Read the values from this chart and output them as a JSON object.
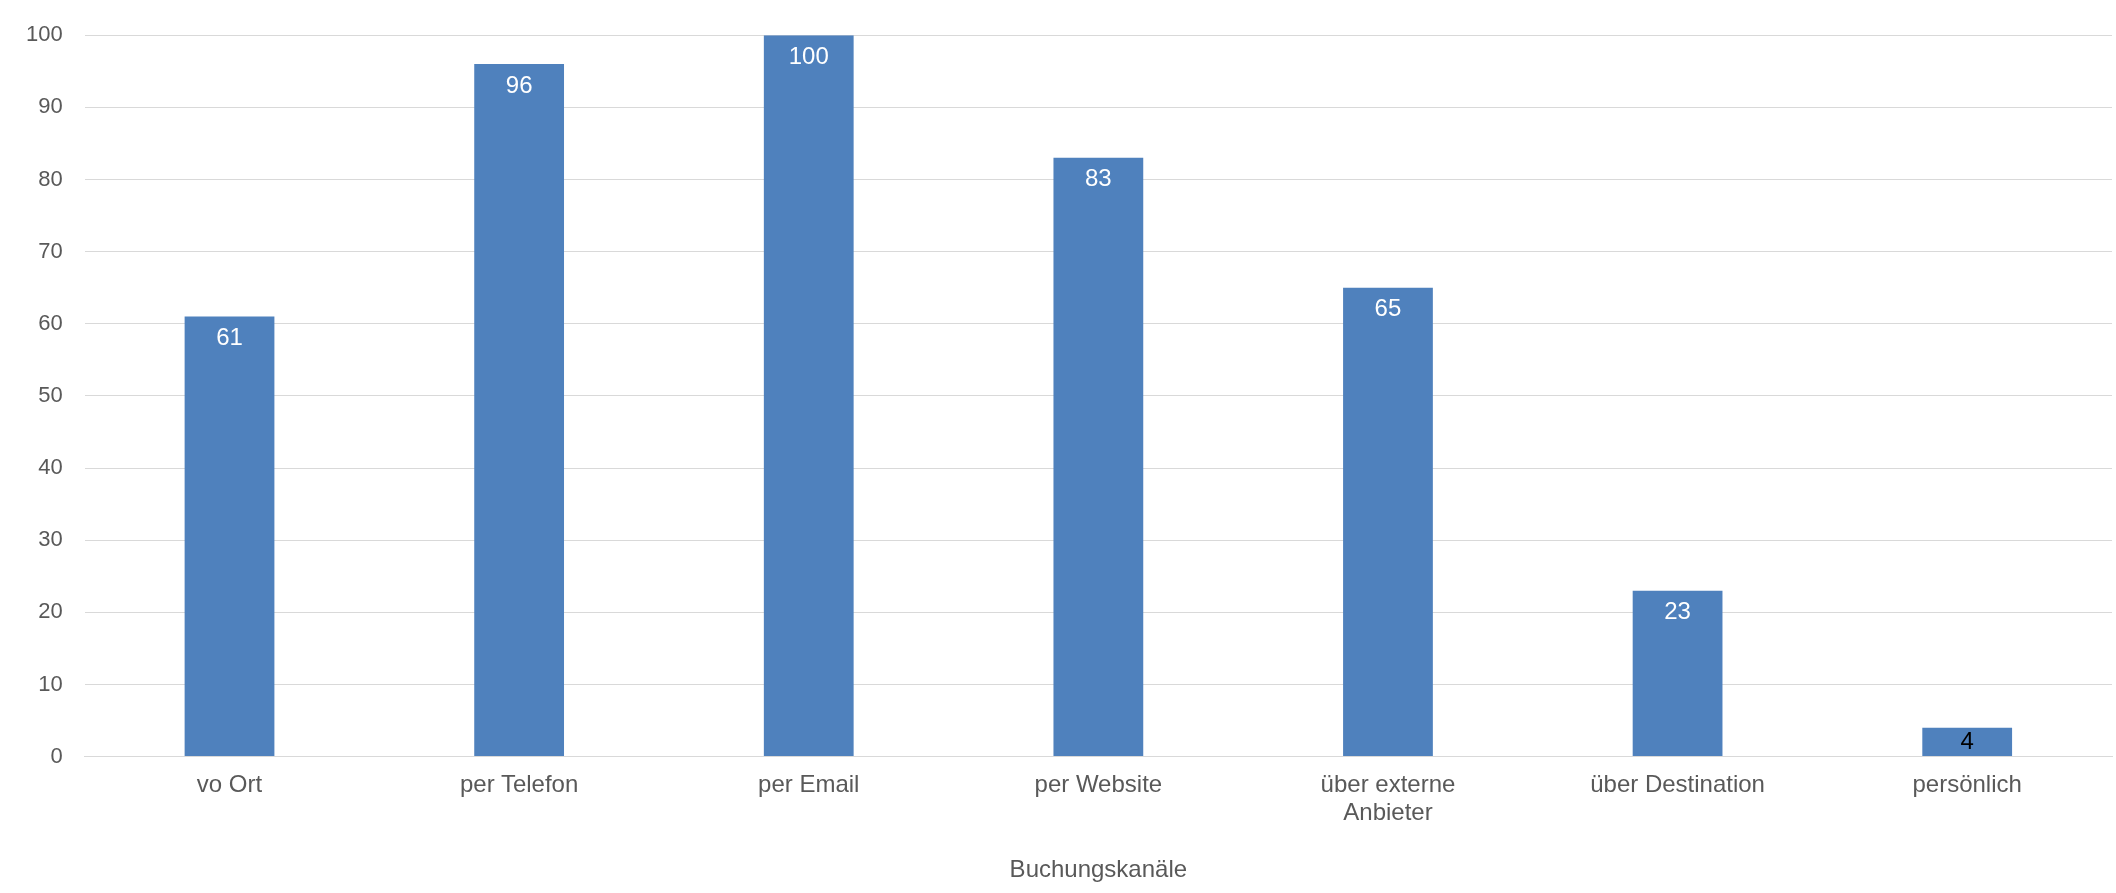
{
  "chart_data": {
    "type": "bar",
    "xlabel": "Buchungskanäle",
    "categories": [
      "vo Ort",
      "per Telefon",
      "per Email",
      "per Website",
      "über externe Anbieter",
      "über Destination",
      "persönlich"
    ],
    "values": [
      61,
      96,
      100,
      83,
      65,
      23,
      4
    ],
    "color": "#4f81bd",
    "ylim": [
      0,
      100
    ],
    "yticks": [
      0,
      10,
      20,
      30,
      40,
      50,
      60,
      70,
      80,
      90,
      100
    ],
    "grid": "y",
    "legend": false,
    "data_labels": true
  }
}
